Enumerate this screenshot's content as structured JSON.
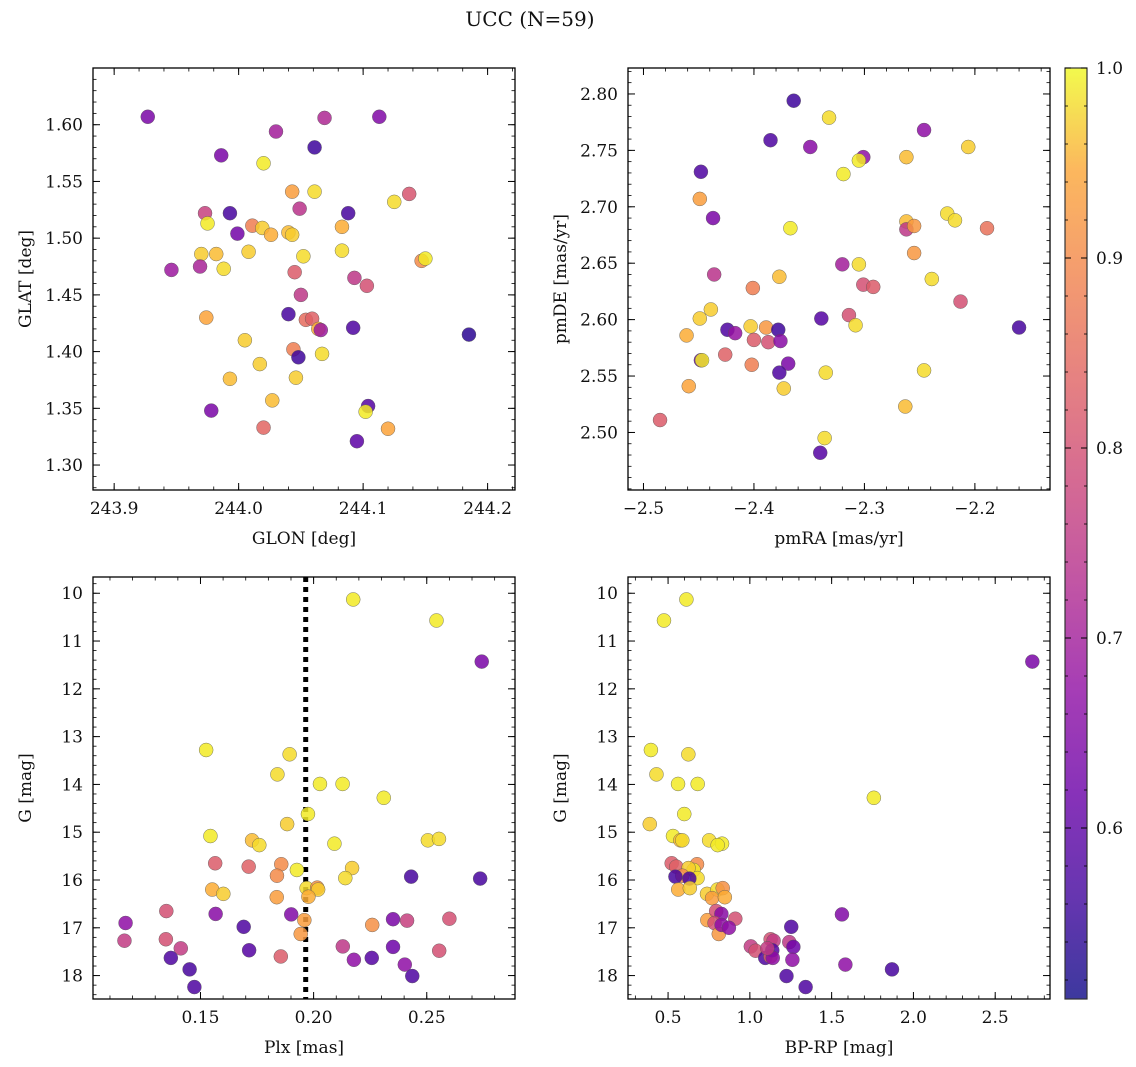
{
  "figure": {
    "title": "UCC (N=59)"
  },
  "colorbar": {
    "colormap": "plasma",
    "range": [
      0.51,
      1.0
    ],
    "ticks": [
      0.6,
      0.7,
      0.8,
      0.9,
      1.0
    ],
    "tick_labels": [
      "0.6",
      "0.7",
      "0.8",
      "0.9",
      "1.0"
    ]
  },
  "chart_data": [
    {
      "type": "scatter",
      "xlabel": "GLON [deg]",
      "ylabel": "GLAT [deg]",
      "xlim": [
        243.883,
        244.222
      ],
      "ylim": [
        1.278,
        1.65
      ],
      "xticks": [
        243.9,
        244.0,
        244.1,
        244.2
      ],
      "xtick_labels": [
        "243.9",
        "244.0",
        "244.1",
        "244.2"
      ],
      "yticks": [
        1.3,
        1.35,
        1.4,
        1.45,
        1.5,
        1.55,
        1.6
      ],
      "ytick_labels": [
        "1.30",
        "1.35",
        "1.40",
        "1.45",
        "1.50",
        "1.55",
        "1.60"
      ],
      "points": [
        [
          243.927,
          1.607,
          0.64
        ],
        [
          244.113,
          1.607,
          0.65
        ],
        [
          244.069,
          1.606,
          0.72
        ],
        [
          244.03,
          1.594,
          0.7
        ],
        [
          243.986,
          1.573,
          0.64
        ],
        [
          244.061,
          1.58,
          0.56
        ],
        [
          244.02,
          1.566,
          0.99
        ],
        [
          244.043,
          1.541,
          0.93
        ],
        [
          244.061,
          1.541,
          0.98
        ],
        [
          244.137,
          1.539,
          0.81
        ],
        [
          244.125,
          1.532,
          0.98
        ],
        [
          243.973,
          1.522,
          0.77
        ],
        [
          243.993,
          1.522,
          0.57
        ],
        [
          244.049,
          1.526,
          0.74
        ],
        [
          244.088,
          1.522,
          0.57
        ],
        [
          243.975,
          1.513,
          0.99
        ],
        [
          244.011,
          1.511,
          0.88
        ],
        [
          244.019,
          1.509,
          0.97
        ],
        [
          244.026,
          1.503,
          0.95
        ],
        [
          244.04,
          1.505,
          0.96
        ],
        [
          244.043,
          1.503,
          0.97
        ],
        [
          244.083,
          1.51,
          0.95
        ],
        [
          243.999,
          1.504,
          0.63
        ],
        [
          243.97,
          1.486,
          0.97
        ],
        [
          243.982,
          1.486,
          0.96
        ],
        [
          244.008,
          1.488,
          0.97
        ],
        [
          244.052,
          1.484,
          0.98
        ],
        [
          244.083,
          1.489,
          0.98
        ],
        [
          244.147,
          1.48,
          0.9
        ],
        [
          244.15,
          1.482,
          0.99
        ],
        [
          243.946,
          1.472,
          0.69
        ],
        [
          243.969,
          1.475,
          0.71
        ],
        [
          243.988,
          1.473,
          0.98
        ],
        [
          244.045,
          1.47,
          0.82
        ],
        [
          244.093,
          1.465,
          0.75
        ],
        [
          244.103,
          1.458,
          0.8
        ],
        [
          244.05,
          1.45,
          0.75
        ],
        [
          244.04,
          1.433,
          0.57
        ],
        [
          244.054,
          1.428,
          0.85
        ],
        [
          244.059,
          1.429,
          0.83
        ],
        [
          244.064,
          1.42,
          0.95
        ],
        [
          244.066,
          1.419,
          0.69
        ],
        [
          243.974,
          1.43,
          0.94
        ],
        [
          244.005,
          1.41,
          0.97
        ],
        [
          244.044,
          1.402,
          0.88
        ],
        [
          244.048,
          1.395,
          0.56
        ],
        [
          244.067,
          1.398,
          0.98
        ],
        [
          244.092,
          1.421,
          0.58
        ],
        [
          244.185,
          1.415,
          0.54
        ],
        [
          244.017,
          1.389,
          0.97
        ],
        [
          243.993,
          1.376,
          0.96
        ],
        [
          244.046,
          1.377,
          0.97
        ],
        [
          244.027,
          1.357,
          0.96
        ],
        [
          243.978,
          1.348,
          0.64
        ],
        [
          244.104,
          1.352,
          0.59
        ],
        [
          244.102,
          1.347,
          0.99
        ],
        [
          244.02,
          1.333,
          0.84
        ],
        [
          244.12,
          1.332,
          0.94
        ],
        [
          244.095,
          1.321,
          0.6
        ]
      ]
    },
    {
      "type": "scatter",
      "xlabel": "pmRA [mas/yr]",
      "ylabel": "pmDE [mas/yr]",
      "xlim": [
        -2.514,
        -2.132
      ],
      "ylim": [
        2.449,
        2.823
      ],
      "xticks": [
        -2.5,
        -2.4,
        -2.3,
        -2.2
      ],
      "xtick_labels": [
        "−2.5",
        "−2.4",
        "−2.3",
        "−2.2"
      ],
      "yticks": [
        2.5,
        2.55,
        2.6,
        2.65,
        2.7,
        2.75,
        2.8
      ],
      "ytick_labels": [
        "2.50",
        "2.55",
        "2.60",
        "2.65",
        "2.70",
        "2.75",
        "2.80"
      ],
      "points": [
        [
          -2.364,
          2.794,
          0.56
        ],
        [
          -2.332,
          2.779,
          0.98
        ],
        [
          -2.385,
          2.759,
          0.58
        ],
        [
          -2.349,
          2.753,
          0.66
        ],
        [
          -2.301,
          2.744,
          0.67
        ],
        [
          -2.305,
          2.741,
          0.99
        ],
        [
          -2.246,
          2.768,
          0.67
        ],
        [
          -2.262,
          2.744,
          0.96
        ],
        [
          -2.206,
          2.753,
          0.97
        ],
        [
          -2.319,
          2.729,
          0.99
        ],
        [
          -2.448,
          2.731,
          0.58
        ],
        [
          -2.449,
          2.707,
          0.93
        ],
        [
          -2.437,
          2.69,
          0.64
        ],
        [
          -2.367,
          2.681,
          0.99
        ],
        [
          -2.262,
          2.687,
          0.96
        ],
        [
          -2.262,
          2.68,
          0.75
        ],
        [
          -2.255,
          2.683,
          0.92
        ],
        [
          -2.225,
          2.694,
          0.98
        ],
        [
          -2.218,
          2.688,
          0.98
        ],
        [
          -2.189,
          2.681,
          0.86
        ],
        [
          -2.32,
          2.649,
          0.7
        ],
        [
          -2.305,
          2.649,
          0.98
        ],
        [
          -2.255,
          2.659,
          0.92
        ],
        [
          -2.239,
          2.636,
          0.98
        ],
        [
          -2.436,
          2.64,
          0.74
        ],
        [
          -2.377,
          2.638,
          0.96
        ],
        [
          -2.301,
          2.631,
          0.8
        ],
        [
          -2.292,
          2.629,
          0.82
        ],
        [
          -2.401,
          2.628,
          0.88
        ],
        [
          -2.439,
          2.609,
          0.97
        ],
        [
          -2.449,
          2.601,
          0.97
        ],
        [
          -2.339,
          2.601,
          0.59
        ],
        [
          -2.314,
          2.604,
          0.8
        ],
        [
          -2.308,
          2.595,
          0.98
        ],
        [
          -2.213,
          2.616,
          0.8
        ],
        [
          -2.16,
          2.593,
          0.57
        ],
        [
          -2.461,
          2.586,
          0.95
        ],
        [
          -2.424,
          2.591,
          0.58
        ],
        [
          -2.417,
          2.588,
          0.68
        ],
        [
          -2.403,
          2.594,
          0.97
        ],
        [
          -2.389,
          2.593,
          0.92
        ],
        [
          -2.378,
          2.591,
          0.56
        ],
        [
          -2.4,
          2.582,
          0.82
        ],
        [
          -2.387,
          2.58,
          0.8
        ],
        [
          -2.376,
          2.581,
          0.66
        ],
        [
          -2.426,
          2.569,
          0.83
        ],
        [
          -2.448,
          2.564,
          0.62
        ],
        [
          -2.447,
          2.564,
          0.99
        ],
        [
          -2.369,
          2.561,
          0.64
        ],
        [
          -2.402,
          2.56,
          0.88
        ],
        [
          -2.377,
          2.553,
          0.58
        ],
        [
          -2.335,
          2.553,
          0.98
        ],
        [
          -2.246,
          2.555,
          0.98
        ],
        [
          -2.459,
          2.541,
          0.94
        ],
        [
          -2.373,
          2.539,
          0.97
        ],
        [
          -2.263,
          2.523,
          0.96
        ],
        [
          -2.485,
          2.511,
          0.82
        ],
        [
          -2.336,
          2.495,
          0.98
        ],
        [
          -2.34,
          2.482,
          0.59
        ]
      ]
    },
    {
      "type": "scatter",
      "xlabel": "Plx [mas]",
      "ylabel": "G [mag]",
      "xlim": [
        0.1025,
        0.289
      ],
      "ylim": [
        18.49,
        9.66
      ],
      "y_inverted": true,
      "xticks": [
        0.15,
        0.2,
        0.25
      ],
      "xtick_labels": [
        "0.15",
        "0.20",
        "0.25"
      ],
      "yticks": [
        10,
        11,
        12,
        13,
        14,
        15,
        16,
        17,
        18
      ],
      "ytick_labels": [
        "10",
        "11",
        "12",
        "13",
        "14",
        "15",
        "16",
        "17",
        "18"
      ],
      "vline": 0.1965,
      "points": [
        [
          0.2175,
          10.13,
          0.99
        ],
        [
          0.2543,
          10.57,
          0.99
        ],
        [
          0.2743,
          11.43,
          0.64
        ],
        [
          0.1525,
          13.28,
          0.99
        ],
        [
          0.1894,
          13.37,
          0.98
        ],
        [
          0.184,
          13.79,
          0.98
        ],
        [
          0.2028,
          13.99,
          0.99
        ],
        [
          0.2128,
          13.99,
          0.99
        ],
        [
          0.231,
          14.28,
          0.99
        ],
        [
          0.1975,
          14.62,
          0.99
        ],
        [
          0.1883,
          14.83,
          0.97
        ],
        [
          0.1544,
          15.08,
          0.99
        ],
        [
          0.1728,
          15.17,
          0.96
        ],
        [
          0.176,
          15.27,
          0.98
        ],
        [
          0.2505,
          15.17,
          0.98
        ],
        [
          0.2554,
          15.14,
          0.98
        ],
        [
          0.2092,
          15.24,
          0.99
        ],
        [
          0.1565,
          15.65,
          0.82
        ],
        [
          0.1713,
          15.72,
          0.83
        ],
        [
          0.1857,
          15.67,
          0.9
        ],
        [
          0.1926,
          15.79,
          0.99
        ],
        [
          0.217,
          15.75,
          0.97
        ],
        [
          0.1838,
          15.91,
          0.9
        ],
        [
          0.214,
          15.96,
          0.98
        ],
        [
          0.2431,
          15.93,
          0.57
        ],
        [
          0.2736,
          15.97,
          0.57
        ],
        [
          0.1552,
          16.2,
          0.95
        ],
        [
          0.1601,
          16.29,
          0.97
        ],
        [
          0.1969,
          16.17,
          0.98
        ],
        [
          0.2016,
          16.16,
          0.91
        ],
        [
          0.202,
          16.2,
          0.97
        ],
        [
          0.1837,
          16.36,
          0.93
        ],
        [
          0.1977,
          16.35,
          0.95
        ],
        [
          0.1169,
          16.9,
          0.67
        ],
        [
          0.1349,
          16.65,
          0.8
        ],
        [
          0.1567,
          16.71,
          0.66
        ],
        [
          0.1691,
          16.98,
          0.58
        ],
        [
          0.1901,
          16.72,
          0.65
        ],
        [
          0.1959,
          16.84,
          0.93
        ],
        [
          0.2259,
          16.94,
          0.91
        ],
        [
          0.2351,
          16.82,
          0.64
        ],
        [
          0.2413,
          16.85,
          0.77
        ],
        [
          0.26,
          16.81,
          0.8
        ],
        [
          0.1164,
          17.27,
          0.76
        ],
        [
          0.1347,
          17.24,
          0.8
        ],
        [
          0.1413,
          17.43,
          0.76
        ],
        [
          0.1943,
          17.13,
          0.92
        ],
        [
          0.2129,
          17.39,
          0.75
        ],
        [
          0.2178,
          17.67,
          0.67
        ],
        [
          0.2257,
          17.63,
          0.59
        ],
        [
          0.2351,
          17.4,
          0.62
        ],
        [
          0.2555,
          17.48,
          0.8
        ],
        [
          0.1369,
          17.63,
          0.58
        ],
        [
          0.1715,
          17.47,
          0.59
        ],
        [
          0.1855,
          17.6,
          0.82
        ],
        [
          0.2403,
          17.77,
          0.67
        ],
        [
          0.1452,
          17.87,
          0.57
        ],
        [
          0.2436,
          18.01,
          0.58
        ],
        [
          0.1473,
          18.24,
          0.58
        ]
      ]
    },
    {
      "type": "scatter",
      "xlabel": "BP-RP [mag]",
      "ylabel": "G [mag]",
      "xlim": [
        0.255,
        2.835
      ],
      "ylim": [
        18.49,
        9.66
      ],
      "y_inverted": true,
      "xticks": [
        0.5,
        1.0,
        1.5,
        2.0,
        2.5
      ],
      "xtick_labels": [
        "0.5",
        "1.0",
        "1.5",
        "2.0",
        "2.5"
      ],
      "yticks": [
        10,
        11,
        12,
        13,
        14,
        15,
        16,
        17,
        18
      ],
      "ytick_labels": [
        "10",
        "11",
        "12",
        "13",
        "14",
        "15",
        "16",
        "17",
        "18"
      ],
      "points": [
        [
          0.612,
          10.13,
          0.99
        ],
        [
          0.475,
          10.57,
          0.99
        ],
        [
          2.727,
          11.43,
          0.64
        ],
        [
          0.395,
          13.28,
          0.99
        ],
        [
          0.624,
          13.37,
          0.98
        ],
        [
          0.429,
          13.79,
          0.98
        ],
        [
          0.561,
          13.99,
          0.99
        ],
        [
          0.681,
          13.99,
          0.99
        ],
        [
          1.758,
          14.28,
          0.99
        ],
        [
          0.599,
          14.62,
          0.99
        ],
        [
          0.388,
          14.83,
          0.97
        ],
        [
          0.53,
          15.08,
          0.99
        ],
        [
          0.575,
          15.17,
          0.96
        ],
        [
          0.751,
          15.17,
          0.98
        ],
        [
          0.587,
          15.17,
          0.98
        ],
        [
          0.83,
          15.24,
          0.99
        ],
        [
          0.803,
          15.27,
          0.99
        ],
        [
          0.522,
          15.65,
          0.82
        ],
        [
          0.55,
          15.72,
          0.83
        ],
        [
          0.677,
          15.67,
          0.9
        ],
        [
          0.656,
          15.79,
          0.99
        ],
        [
          0.625,
          15.75,
          0.97
        ],
        [
          0.587,
          15.91,
          0.9
        ],
        [
          0.68,
          15.96,
          0.98
        ],
        [
          0.545,
          15.93,
          0.57
        ],
        [
          0.63,
          15.97,
          0.57
        ],
        [
          0.562,
          16.2,
          0.95
        ],
        [
          0.633,
          16.17,
          0.97
        ],
        [
          0.738,
          16.29,
          0.97
        ],
        [
          0.802,
          16.2,
          0.98
        ],
        [
          0.834,
          16.17,
          0.91
        ],
        [
          0.769,
          16.38,
          0.93
        ],
        [
          0.847,
          16.36,
          0.95
        ],
        [
          0.74,
          16.84,
          0.93
        ],
        [
          0.794,
          16.65,
          0.8
        ],
        [
          0.826,
          16.71,
          0.66
        ],
        [
          0.911,
          16.81,
          0.8
        ],
        [
          1.253,
          16.98,
          0.58
        ],
        [
          1.563,
          16.72,
          0.65
        ],
        [
          0.784,
          16.9,
          0.8
        ],
        [
          0.81,
          17.13,
          0.92
        ],
        [
          0.827,
          16.94,
          0.67
        ],
        [
          1.006,
          17.39,
          0.76
        ],
        [
          1.035,
          17.48,
          0.8
        ],
        [
          1.127,
          17.24,
          0.8
        ],
        [
          1.145,
          17.27,
          0.76
        ],
        [
          1.241,
          17.3,
          0.75
        ],
        [
          1.266,
          17.4,
          0.62
        ],
        [
          1.094,
          17.63,
          0.58
        ],
        [
          1.126,
          17.6,
          0.82
        ],
        [
          1.137,
          17.47,
          0.59
        ],
        [
          1.14,
          17.63,
          0.67
        ],
        [
          1.26,
          17.67,
          0.67
        ],
        [
          1.584,
          17.77,
          0.67
        ],
        [
          1.869,
          17.87,
          0.57
        ],
        [
          1.224,
          18.01,
          0.58
        ],
        [
          1.341,
          18.24,
          0.58
        ],
        [
          1.107,
          17.43,
          0.76
        ],
        [
          0.872,
          17.0,
          0.67
        ]
      ]
    }
  ]
}
